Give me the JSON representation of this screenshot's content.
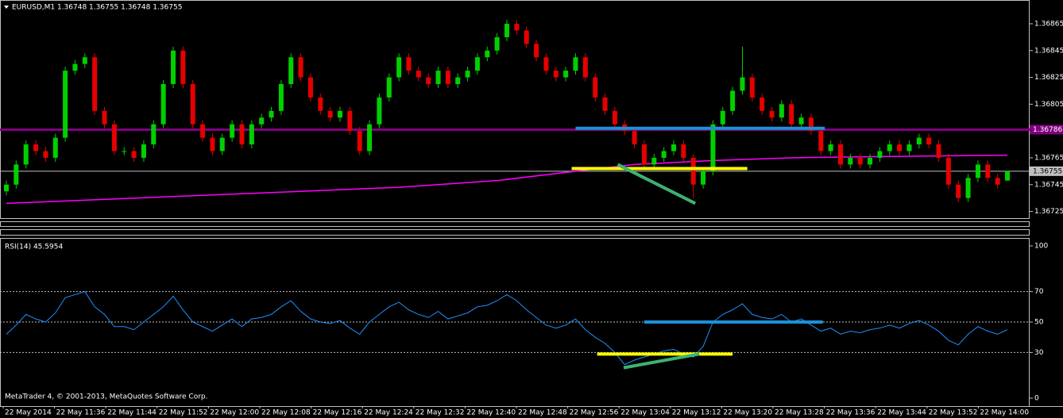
{
  "header": "EURUSD,M1  1.36748 1.36755 1.36748 1.36755",
  "footer": "MetaTrader 4, © 2001-2013, MetaQuotes Software Corp.",
  "time_labels": [
    "22 May 2014",
    "22 May 11:36",
    "22 May 11:44",
    "22 May 11:52",
    "22 May 12:00",
    "22 May 12:08",
    "22 May 12:16",
    "22 May 12:24",
    "22 May 12:32",
    "22 May 12:40",
    "22 May 12:48",
    "22 May 12:56",
    "22 May 13:04",
    "22 May 13:12",
    "22 May 13:20",
    "22 May 13:28",
    "22 May 13:36",
    "22 May 13:44",
    "22 May 13:52",
    "22 May 14:00"
  ],
  "chart_data": [
    {
      "type": "candlestick",
      "up_color": "#00d000",
      "down_color": "#e60000",
      "open": [
        1.3674,
        1.36745,
        1.3676,
        1.36775,
        1.3677,
        1.36765,
        1.3678,
        1.3683,
        1.36835,
        1.3684,
        1.368,
        1.3679,
        1.3677,
        1.3677,
        1.36765,
        1.36775,
        1.3679,
        1.3682,
        1.36845,
        1.3682,
        1.3679,
        1.3678,
        1.3677,
        1.3678,
        1.3679,
        1.36775,
        1.3679,
        1.36795,
        1.368,
        1.3682,
        1.3684,
        1.36825,
        1.3681,
        1.368,
        1.36795,
        1.368,
        1.36785,
        1.3677,
        1.3679,
        1.3681,
        1.36825,
        1.3684,
        1.3683,
        1.36825,
        1.3682,
        1.3683,
        1.3682,
        1.36825,
        1.3683,
        1.3684,
        1.36845,
        1.36855,
        1.36865,
        1.3686,
        1.3685,
        1.3684,
        1.3683,
        1.36825,
        1.3683,
        1.3684,
        1.36825,
        1.3681,
        1.368,
        1.3679,
        1.36785,
        1.36775,
        1.3676,
        1.36765,
        1.3677,
        1.36775,
        1.36765,
        1.36745,
        1.36755,
        1.3679,
        1.368,
        1.36815,
        1.36825,
        1.3681,
        1.368,
        1.36795,
        1.36805,
        1.3679,
        1.36795,
        1.36785,
        1.3677,
        1.36775,
        1.3676,
        1.36765,
        1.3676,
        1.36765,
        1.3677,
        1.36775,
        1.3677,
        1.36775,
        1.3678,
        1.36775,
        1.36765,
        1.36745,
        1.36735,
        1.3675,
        1.3676,
        1.3675,
        1.36748
      ],
      "high": [
        1.36748,
        1.36763,
        1.36778,
        1.36778,
        1.36773,
        1.36783,
        1.36833,
        1.36838,
        1.36843,
        1.36843,
        1.36803,
        1.36793,
        1.36773,
        1.36773,
        1.36778,
        1.36793,
        1.36823,
        1.36848,
        1.36848,
        1.36823,
        1.36793,
        1.36783,
        1.36783,
        1.36793,
        1.36793,
        1.36793,
        1.36798,
        1.36803,
        1.36823,
        1.36843,
        1.36843,
        1.36828,
        1.36813,
        1.36803,
        1.36803,
        1.36803,
        1.36788,
        1.36793,
        1.36813,
        1.36828,
        1.36843,
        1.36843,
        1.36833,
        1.36828,
        1.36833,
        1.36833,
        1.36828,
        1.36833,
        1.36843,
        1.36848,
        1.36858,
        1.36868,
        1.36868,
        1.36863,
        1.36853,
        1.36843,
        1.36833,
        1.36833,
        1.36843,
        1.36843,
        1.36828,
        1.36813,
        1.36803,
        1.36793,
        1.36788,
        1.36778,
        1.36768,
        1.36773,
        1.36778,
        1.36778,
        1.36768,
        1.36758,
        1.36793,
        1.36803,
        1.36818,
        1.36848,
        1.36828,
        1.36813,
        1.36803,
        1.36808,
        1.36808,
        1.36798,
        1.36798,
        1.36788,
        1.36778,
        1.36778,
        1.36768,
        1.36768,
        1.36768,
        1.36773,
        1.36778,
        1.36778,
        1.36778,
        1.36783,
        1.36783,
        1.36778,
        1.36768,
        1.36748,
        1.36753,
        1.36763,
        1.36763,
        1.36753,
        1.36755
      ],
      "low": [
        1.36737,
        1.36742,
        1.36757,
        1.36767,
        1.36762,
        1.36762,
        1.36777,
        1.36827,
        1.36832,
        1.36797,
        1.36787,
        1.36767,
        1.36767,
        1.36762,
        1.36762,
        1.36772,
        1.36787,
        1.36817,
        1.36817,
        1.36787,
        1.36777,
        1.36767,
        1.36767,
        1.36777,
        1.36772,
        1.36772,
        1.36787,
        1.36792,
        1.36797,
        1.36817,
        1.36822,
        1.36807,
        1.36797,
        1.36792,
        1.36792,
        1.36782,
        1.36767,
        1.36767,
        1.36787,
        1.36807,
        1.36822,
        1.36827,
        1.36822,
        1.36817,
        1.36817,
        1.36817,
        1.36817,
        1.36822,
        1.36827,
        1.36837,
        1.36842,
        1.36852,
        1.36857,
        1.36847,
        1.36837,
        1.36827,
        1.36822,
        1.36822,
        1.36827,
        1.36822,
        1.36807,
        1.36797,
        1.36787,
        1.36782,
        1.36772,
        1.36757,
        1.36757,
        1.36762,
        1.36767,
        1.36762,
        1.36735,
        1.36742,
        1.36752,
        1.36787,
        1.36797,
        1.36812,
        1.36807,
        1.36797,
        1.36792,
        1.36792,
        1.36787,
        1.36787,
        1.36782,
        1.36767,
        1.36767,
        1.36757,
        1.36757,
        1.36757,
        1.36757,
        1.36762,
        1.36767,
        1.36767,
        1.36767,
        1.36772,
        1.36772,
        1.36762,
        1.36742,
        1.36732,
        1.36732,
        1.36747,
        1.36747,
        1.36742,
        1.36748
      ],
      "close": [
        1.36745,
        1.3676,
        1.36775,
        1.3677,
        1.36765,
        1.3678,
        1.3683,
        1.36835,
        1.3684,
        1.368,
        1.3679,
        1.3677,
        1.3677,
        1.36765,
        1.36775,
        1.3679,
        1.3682,
        1.36845,
        1.3682,
        1.3679,
        1.3678,
        1.3677,
        1.3678,
        1.3679,
        1.36775,
        1.3679,
        1.36795,
        1.368,
        1.3682,
        1.3684,
        1.36825,
        1.3681,
        1.368,
        1.36795,
        1.368,
        1.36785,
        1.3677,
        1.3679,
        1.3681,
        1.36825,
        1.3684,
        1.3683,
        1.36825,
        1.3682,
        1.3683,
        1.3682,
        1.36825,
        1.3683,
        1.3684,
        1.36845,
        1.36855,
        1.36865,
        1.3686,
        1.3685,
        1.3684,
        1.3683,
        1.36825,
        1.3683,
        1.3684,
        1.36825,
        1.3681,
        1.368,
        1.3679,
        1.36785,
        1.36775,
        1.3676,
        1.36765,
        1.3677,
        1.36775,
        1.36765,
        1.36745,
        1.36755,
        1.3679,
        1.368,
        1.36815,
        1.36825,
        1.3681,
        1.368,
        1.36795,
        1.36805,
        1.3679,
        1.36795,
        1.36785,
        1.3677,
        1.36775,
        1.3676,
        1.36765,
        1.3676,
        1.36765,
        1.3677,
        1.36775,
        1.3677,
        1.36775,
        1.3678,
        1.36775,
        1.36765,
        1.36745,
        1.36735,
        1.3675,
        1.3676,
        1.3675,
        1.36745,
        1.36755
      ],
      "ylim": [
        1.3672,
        1.36878
      ],
      "yticks": [
        1.36725,
        1.36745,
        1.36765,
        1.36785,
        1.36805,
        1.36825,
        1.36845,
        1.36865
      ],
      "moving_average": {
        "color": "#ff00ff",
        "x": [
          0,
          10,
          20,
          30,
          40,
          50,
          58,
          64,
          72,
          80,
          90,
          102
        ],
        "values": [
          1.36731,
          1.36734,
          1.36737,
          1.3674,
          1.36743,
          1.36748,
          1.36755,
          1.3676,
          1.36763,
          1.36765,
          1.36766,
          1.36767
        ]
      },
      "levels": [
        {
          "value": 1.36786,
          "color": "#800080"
        },
        {
          "value": 1.36755,
          "color": "#c0c0c0"
        }
      ],
      "trendlines": [
        {
          "color": "#1e90d8",
          "x": [
            58,
            83.4
          ],
          "values": [
            1.36787,
            1.36787
          ]
        },
        {
          "color": "#ffff00",
          "x": [
            57.6,
            75.5
          ],
          "values": [
            1.36757,
            1.36757
          ]
        },
        {
          "color": "#3cb371",
          "x": [
            62.3,
            70.2
          ],
          "values": [
            1.3676,
            1.36731
          ]
        }
      ]
    },
    {
      "type": "line",
      "label": "RSI(14) 45.5954",
      "color": "#1e90ff",
      "values": [
        42,
        48,
        55,
        52,
        50,
        56,
        66,
        68,
        70,
        60,
        55,
        47,
        47,
        45,
        50,
        55,
        60,
        67,
        58,
        50,
        47,
        44,
        48,
        52,
        47,
        52,
        53,
        55,
        60,
        64,
        57,
        52,
        50,
        49,
        51,
        46,
        42,
        50,
        55,
        60,
        63,
        58,
        55,
        53,
        57,
        52,
        54,
        56,
        60,
        61,
        64,
        68,
        64,
        58,
        53,
        48,
        46,
        48,
        52,
        45,
        40,
        36,
        30,
        22,
        25,
        27,
        29,
        31,
        32,
        29,
        27,
        34,
        50,
        55,
        58,
        62,
        55,
        53,
        52,
        55,
        50,
        52,
        48,
        44,
        46,
        42,
        44,
        43,
        45,
        46,
        48,
        46,
        49,
        51,
        48,
        44,
        38,
        35,
        42,
        47,
        44,
        42,
        45
      ],
      "ylim": [
        0,
        100
      ],
      "yticks": [
        0,
        30,
        50,
        70,
        100
      ],
      "levels": [
        30,
        50,
        70
      ],
      "trendlines": [
        {
          "color": "#1e90d8",
          "x": [
            65,
            83.2
          ],
          "values": [
            50,
            50
          ]
        },
        {
          "color": "#ffff00",
          "x": [
            60.2,
            74
          ],
          "values": [
            29,
            29
          ]
        },
        {
          "color": "#3cb371",
          "x": [
            62.9,
            70.6
          ],
          "values": [
            20,
            29
          ]
        }
      ]
    }
  ]
}
